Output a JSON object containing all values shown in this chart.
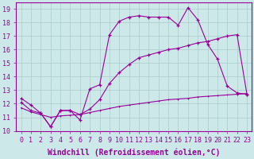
{
  "xlabel": "Windchill (Refroidissement éolien,°C)",
  "background_color": "#cce8e8",
  "line_color": "#990099",
  "grid_color": "#aacccc",
  "xlim": [
    -0.5,
    23.5
  ],
  "ylim": [
    10,
    19.5
  ],
  "xticks": [
    0,
    1,
    2,
    3,
    4,
    5,
    6,
    7,
    8,
    9,
    10,
    11,
    12,
    13,
    14,
    15,
    16,
    17,
    18,
    19,
    20,
    21,
    22,
    23
  ],
  "yticks": [
    10,
    11,
    12,
    13,
    14,
    15,
    16,
    17,
    18,
    19
  ],
  "line1_x": [
    0,
    1,
    2,
    3,
    4,
    5,
    6,
    7,
    8,
    9,
    10,
    11,
    12,
    13,
    14,
    15,
    16,
    17,
    18,
    19,
    20,
    21,
    22,
    23
  ],
  "line1_y": [
    12.4,
    11.9,
    11.3,
    10.3,
    11.5,
    11.5,
    10.8,
    13.1,
    13.4,
    17.1,
    18.1,
    18.4,
    18.5,
    18.4,
    18.4,
    18.4,
    17.8,
    19.1,
    18.2,
    16.4,
    15.3,
    13.3,
    12.8,
    12.7
  ],
  "line2_x": [
    0,
    1,
    2,
    3,
    4,
    5,
    6,
    7,
    8,
    9,
    10,
    11,
    12,
    13,
    14,
    15,
    16,
    17,
    18,
    19,
    20,
    21,
    22,
    23
  ],
  "line2_y": [
    12.1,
    11.5,
    11.3,
    10.3,
    11.5,
    11.5,
    11.2,
    11.6,
    12.3,
    13.5,
    14.3,
    14.9,
    15.4,
    15.6,
    15.8,
    16.0,
    16.1,
    16.3,
    16.5,
    16.6,
    16.8,
    17.0,
    17.1,
    12.7
  ],
  "line3_x": [
    0,
    1,
    2,
    3,
    4,
    5,
    6,
    7,
    8,
    9,
    10,
    11,
    12,
    13,
    14,
    15,
    16,
    17,
    18,
    19,
    20,
    21,
    22,
    23
  ],
  "line3_y": [
    11.7,
    11.4,
    11.2,
    11.0,
    11.1,
    11.15,
    11.2,
    11.35,
    11.5,
    11.65,
    11.8,
    11.9,
    12.0,
    12.1,
    12.2,
    12.3,
    12.35,
    12.4,
    12.5,
    12.55,
    12.6,
    12.65,
    12.7,
    12.75
  ],
  "font_size": 6
}
